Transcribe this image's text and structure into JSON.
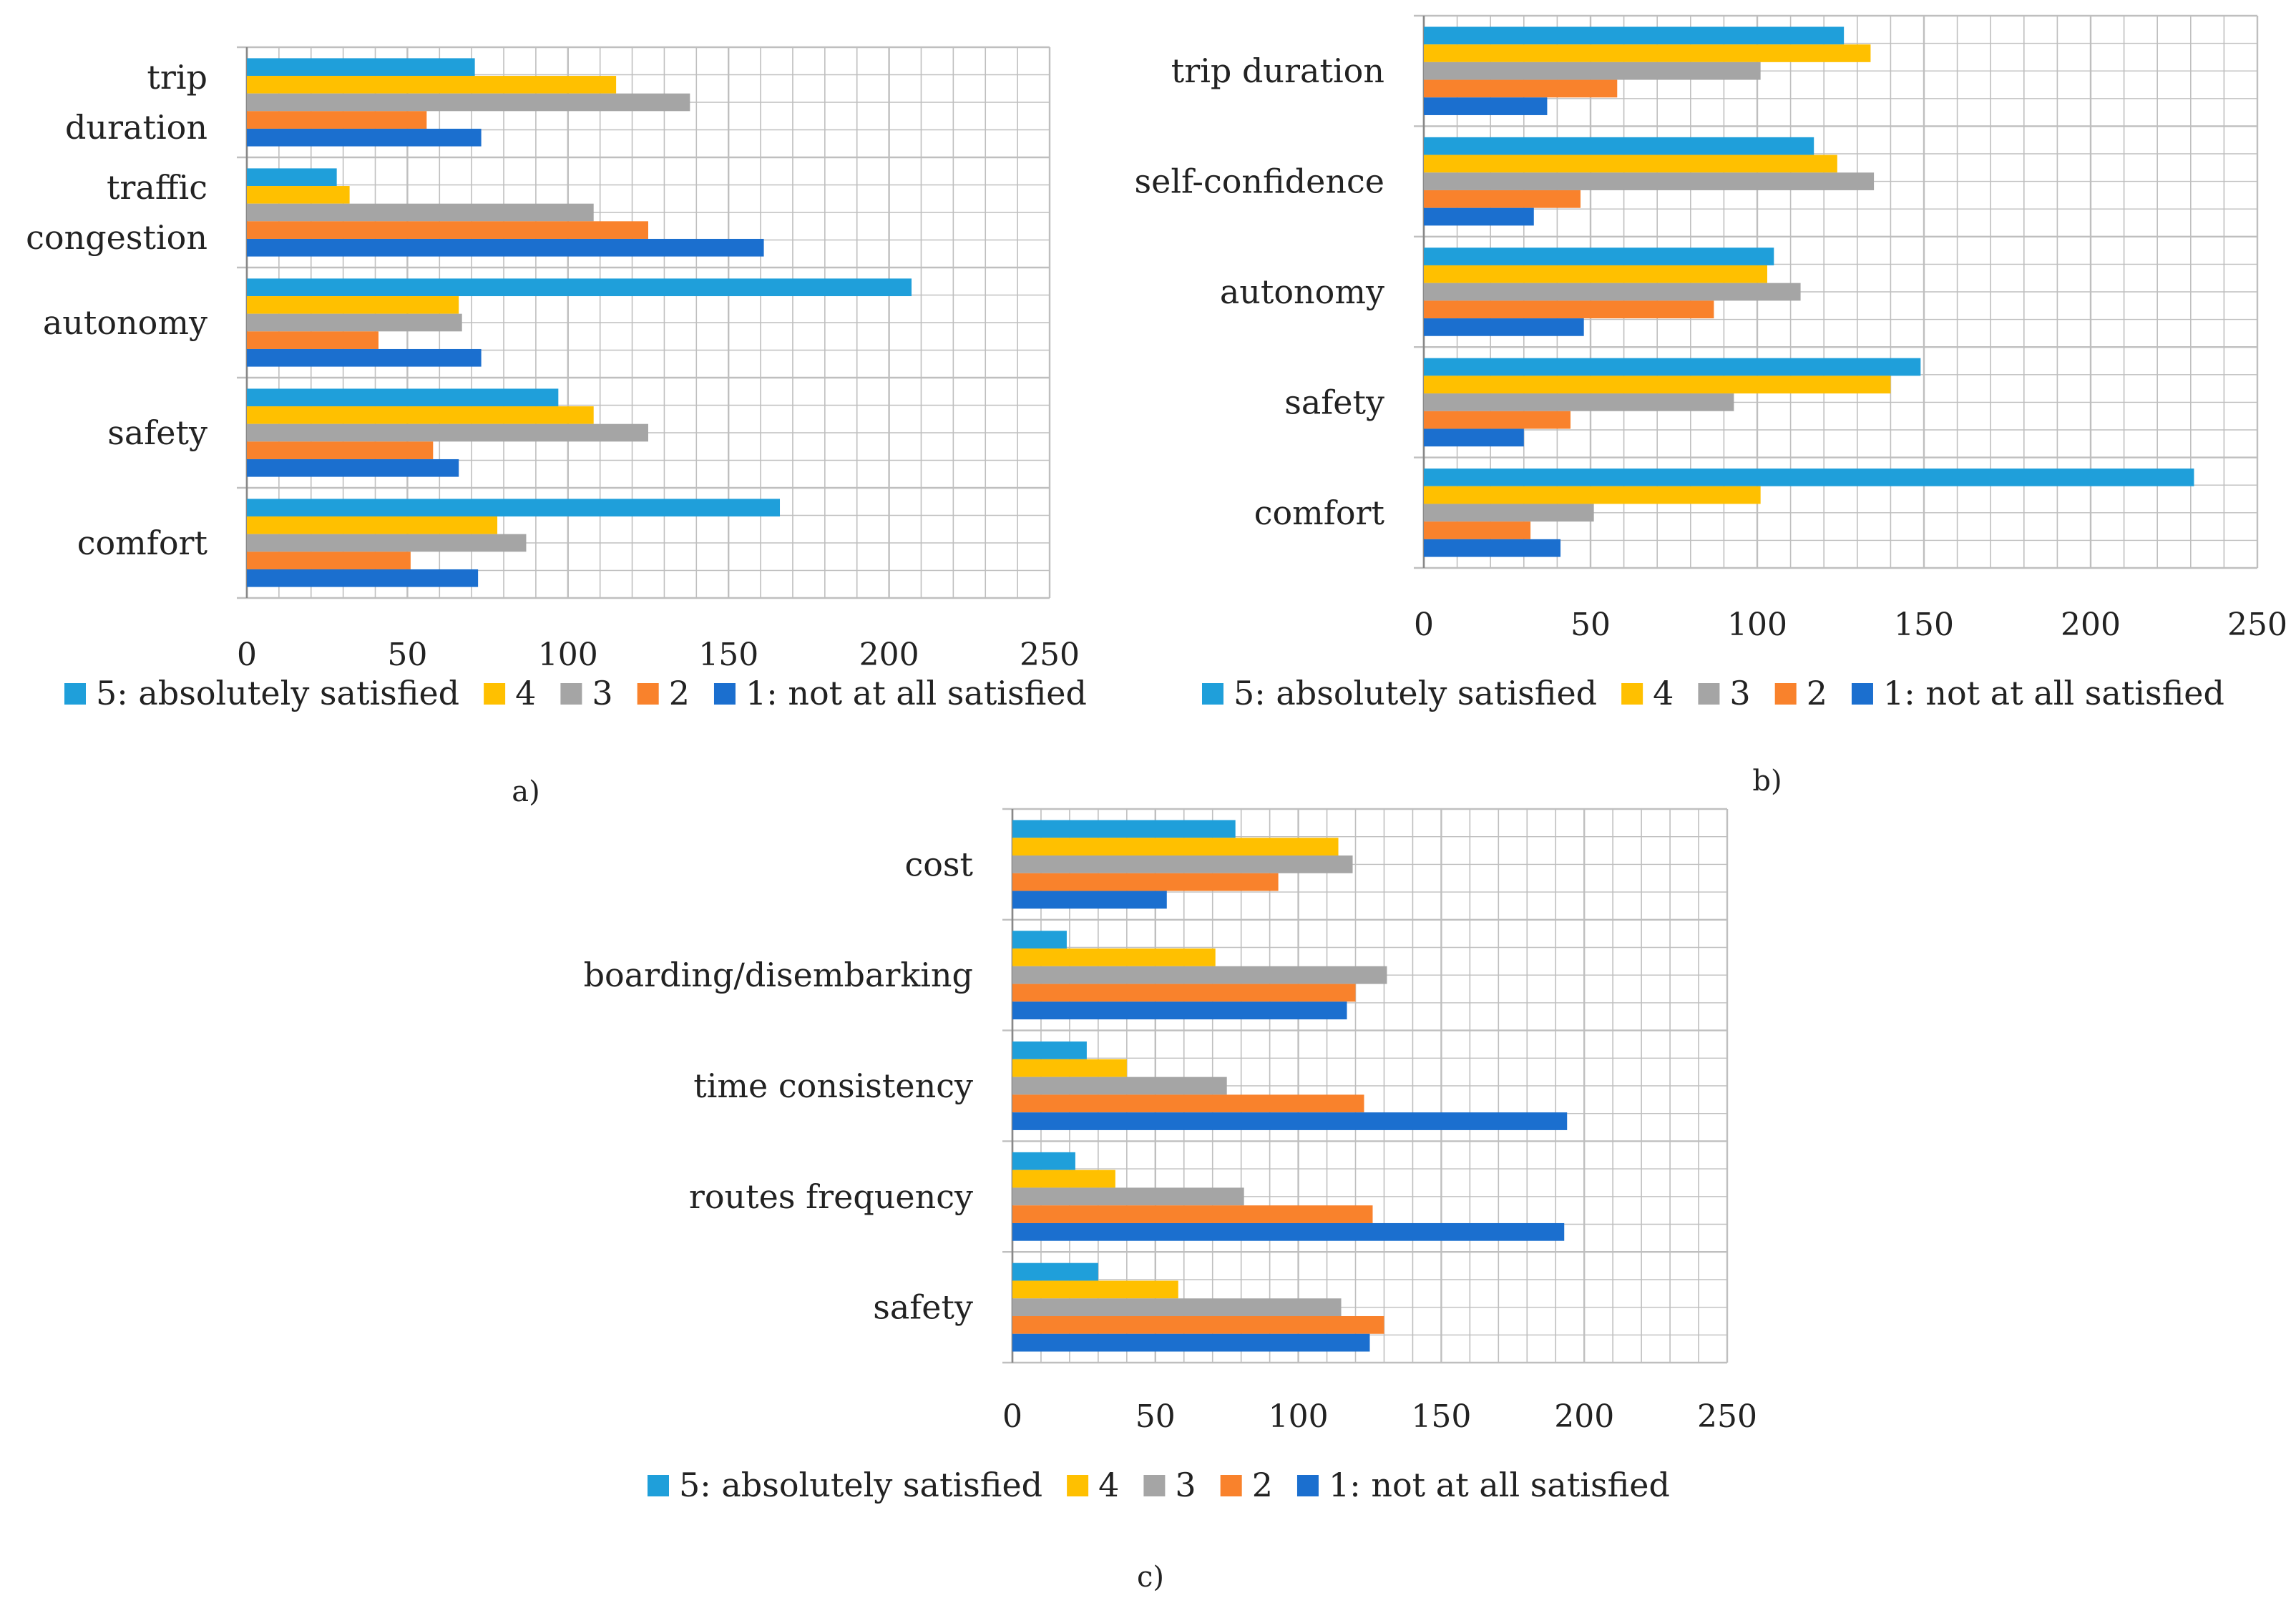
{
  "colors": {
    "s5": "#1f9fda",
    "s4": "#ffc000",
    "s3": "#a5a5a5",
    "s2": "#f9822c",
    "s1": "#1b6fcf",
    "grid": "#bfbfbf",
    "axis": "#888888"
  },
  "chart_data": [
    {
      "id": "a",
      "type": "bar",
      "orientation": "horizontal",
      "panel_label": "a)",
      "categories": [
        [
          "trip",
          "duration"
        ],
        [
          "traffic",
          "congestion"
        ],
        [
          "autonomy"
        ],
        [
          "safety"
        ],
        [
          "comfort"
        ]
      ],
      "series": [
        {
          "name": "5: absolutely satisfied",
          "key": "s5",
          "values": [
            71,
            28,
            207,
            97,
            166
          ]
        },
        {
          "name": "4",
          "key": "s4",
          "values": [
            115,
            32,
            66,
            108,
            78
          ]
        },
        {
          "name": "3",
          "key": "s3",
          "values": [
            138,
            108,
            67,
            125,
            87
          ]
        },
        {
          "name": "2",
          "key": "s2",
          "values": [
            56,
            125,
            41,
            58,
            51
          ]
        },
        {
          "name": "1: not at all satisfied",
          "key": "s1",
          "values": [
            73,
            161,
            73,
            66,
            72
          ]
        }
      ],
      "xlim": [
        0,
        250
      ],
      "xticks": [
        "0",
        "50",
        "100",
        "150",
        "200",
        "250"
      ],
      "grid": true,
      "legend": "bottom"
    },
    {
      "id": "b",
      "type": "bar",
      "orientation": "horizontal",
      "panel_label": "b)",
      "categories": [
        [
          "trip duration"
        ],
        [
          "self-confidence"
        ],
        [
          "autonomy"
        ],
        [
          "safety"
        ],
        [
          "comfort"
        ]
      ],
      "series": [
        {
          "name": "5: absolutely satisfied",
          "key": "s5",
          "values": [
            126,
            117,
            105,
            149,
            231
          ]
        },
        {
          "name": "4",
          "key": "s4",
          "values": [
            134,
            124,
            103,
            140,
            101
          ]
        },
        {
          "name": "3",
          "key": "s3",
          "values": [
            101,
            135,
            113,
            93,
            51
          ]
        },
        {
          "name": "2",
          "key": "s2",
          "values": [
            58,
            47,
            87,
            44,
            32
          ]
        },
        {
          "name": "1: not at all satisfied",
          "key": "s1",
          "values": [
            37,
            33,
            48,
            30,
            41
          ]
        }
      ],
      "xlim": [
        0,
        250
      ],
      "xticks": [
        "0",
        "50",
        "100",
        "150",
        "200",
        "250"
      ],
      "grid": true,
      "legend": "bottom"
    },
    {
      "id": "c",
      "type": "bar",
      "orientation": "horizontal",
      "panel_label": "c)",
      "categories": [
        [
          "cost"
        ],
        [
          "boarding/disembarking"
        ],
        [
          "time consistency"
        ],
        [
          "routes frequency"
        ],
        [
          "safety"
        ]
      ],
      "series": [
        {
          "name": "5: absolutely satisfied",
          "key": "s5",
          "values": [
            78,
            19,
            26,
            22,
            30
          ]
        },
        {
          "name": "4",
          "key": "s4",
          "values": [
            114,
            71,
            40,
            36,
            58
          ]
        },
        {
          "name": "3",
          "key": "s3",
          "values": [
            119,
            131,
            75,
            81,
            115
          ]
        },
        {
          "name": "2",
          "key": "s2",
          "values": [
            93,
            120,
            123,
            126,
            130
          ]
        },
        {
          "name": "1: not at all satisfied",
          "key": "s1",
          "values": [
            54,
            117,
            194,
            193,
            125
          ]
        }
      ],
      "xlim": [
        0,
        250
      ],
      "xticks": [
        "0",
        "50",
        "100",
        "150",
        "200",
        "250"
      ],
      "grid": true,
      "legend": "bottom"
    }
  ]
}
